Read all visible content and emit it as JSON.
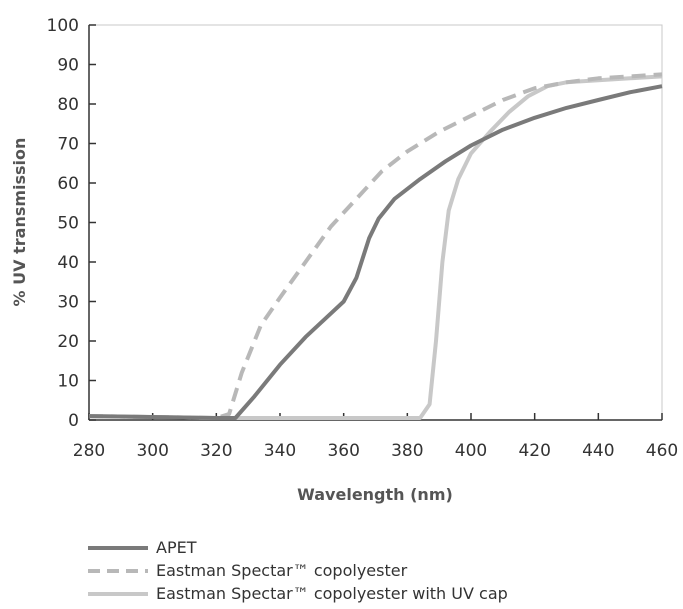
{
  "chart_data": {
    "type": "line",
    "xlabel": "Wavelength (nm)",
    "ylabel": "% UV transmission",
    "xlim": [
      280,
      460
    ],
    "ylim": [
      0,
      100
    ],
    "x_ticks": [
      "280",
      "300",
      "320",
      "340",
      "360",
      "380",
      "400",
      "420",
      "440",
      "460"
    ],
    "y_ticks": [
      "0",
      "10",
      "20",
      "30",
      "40",
      "50",
      "60",
      "70",
      "80",
      "90",
      "100"
    ],
    "grid": false,
    "legend_position": "bottom",
    "series": [
      {
        "name": "APET",
        "color": "#7a7a7a",
        "style": "solid",
        "points": [
          [
            280,
            1
          ],
          [
            320,
            0.5
          ],
          [
            326,
            0.5
          ],
          [
            332,
            6
          ],
          [
            340,
            14
          ],
          [
            348,
            21
          ],
          [
            356,
            27
          ],
          [
            360,
            30
          ],
          [
            364,
            36
          ],
          [
            368,
            46
          ],
          [
            371,
            51
          ],
          [
            376,
            56
          ],
          [
            384,
            61
          ],
          [
            392,
            65.5
          ],
          [
            400,
            69.5
          ],
          [
            410,
            73.5
          ],
          [
            420,
            76.5
          ],
          [
            430,
            79
          ],
          [
            440,
            81
          ],
          [
            450,
            83
          ],
          [
            460,
            84.5
          ]
        ]
      },
      {
        "name": "Eastman Spectar™ copolyester",
        "color": "#b8b8b8",
        "style": "dashed",
        "points": [
          [
            280,
            1
          ],
          [
            320,
            0.5
          ],
          [
            324,
            1.5
          ],
          [
            328,
            12
          ],
          [
            334,
            24
          ],
          [
            340,
            31
          ],
          [
            348,
            40
          ],
          [
            356,
            49
          ],
          [
            364,
            56
          ],
          [
            372,
            63
          ],
          [
            380,
            68
          ],
          [
            390,
            73
          ],
          [
            400,
            77
          ],
          [
            410,
            81
          ],
          [
            420,
            84
          ],
          [
            430,
            85.5
          ],
          [
            440,
            86.5
          ],
          [
            450,
            87
          ],
          [
            460,
            87.5
          ]
        ]
      },
      {
        "name": "Eastman Spectar™ copolyester with UV cap",
        "color": "#c8c8c8",
        "style": "solid",
        "points": [
          [
            280,
            1
          ],
          [
            320,
            0.5
          ],
          [
            370,
            0.5
          ],
          [
            384,
            0.5
          ],
          [
            387,
            4
          ],
          [
            389,
            20
          ],
          [
            391,
            40
          ],
          [
            393,
            53
          ],
          [
            396,
            61
          ],
          [
            400,
            67.5
          ],
          [
            406,
            73
          ],
          [
            412,
            78
          ],
          [
            418,
            82
          ],
          [
            424,
            84.5
          ],
          [
            430,
            85.5
          ],
          [
            440,
            86
          ],
          [
            450,
            86.5
          ],
          [
            460,
            87
          ]
        ]
      }
    ]
  }
}
